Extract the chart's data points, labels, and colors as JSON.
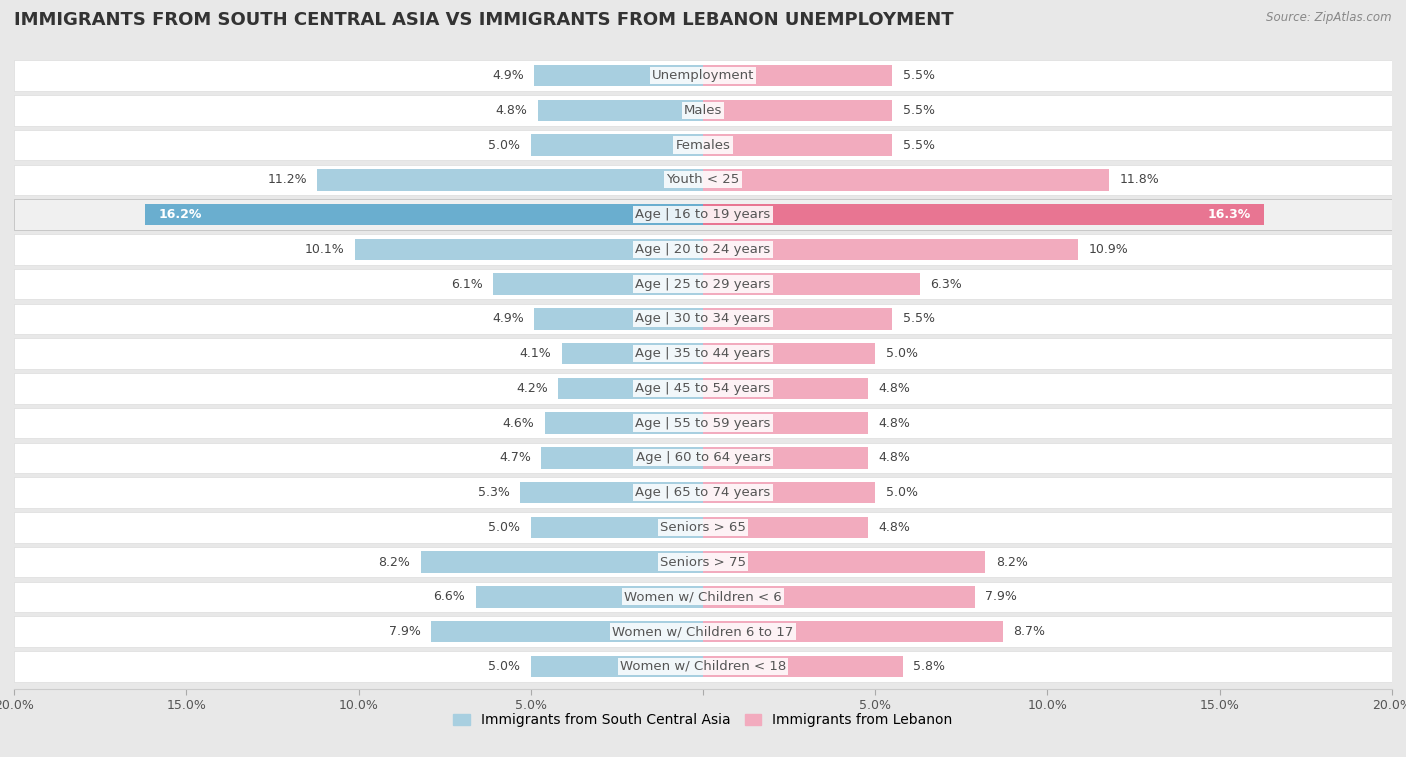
{
  "title": "IMMIGRANTS FROM SOUTH CENTRAL ASIA VS IMMIGRANTS FROM LEBANON UNEMPLOYMENT",
  "source": "Source: ZipAtlas.com",
  "categories": [
    "Unemployment",
    "Males",
    "Females",
    "Youth < 25",
    "Age | 16 to 19 years",
    "Age | 20 to 24 years",
    "Age | 25 to 29 years",
    "Age | 30 to 34 years",
    "Age | 35 to 44 years",
    "Age | 45 to 54 years",
    "Age | 55 to 59 years",
    "Age | 60 to 64 years",
    "Age | 65 to 74 years",
    "Seniors > 65",
    "Seniors > 75",
    "Women w/ Children < 6",
    "Women w/ Children 6 to 17",
    "Women w/ Children < 18"
  ],
  "left_values": [
    4.9,
    4.8,
    5.0,
    11.2,
    16.2,
    10.1,
    6.1,
    4.9,
    4.1,
    4.2,
    4.6,
    4.7,
    5.3,
    5.0,
    8.2,
    6.6,
    7.9,
    5.0
  ],
  "right_values": [
    5.5,
    5.5,
    5.5,
    11.8,
    16.3,
    10.9,
    6.3,
    5.5,
    5.0,
    4.8,
    4.8,
    4.8,
    5.0,
    4.8,
    8.2,
    7.9,
    8.7,
    5.8
  ],
  "left_color": "#a8cfe0",
  "right_color": "#f2abbe",
  "highlight_left_color": "#6aaecf",
  "highlight_right_color": "#e87592",
  "axis_max": 20.0,
  "legend_left": "Immigrants from South Central Asia",
  "legend_right": "Immigrants from Lebanon",
  "bg_color": "#e8e8e8",
  "row_white_color": "#ffffff",
  "row_alt_color": "#f5f5f5",
  "title_fontsize": 13,
  "label_fontsize": 9.5,
  "value_fontsize": 9,
  "source_fontsize": 8.5,
  "tick_fontsize": 9
}
